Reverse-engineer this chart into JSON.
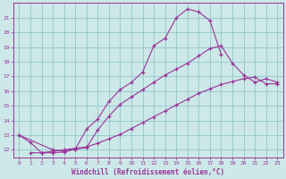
{
  "xlabel": "Windchill (Refroidissement éolien,°C)",
  "bg_color": "#cce8e8",
  "grid_color": "#99cccc",
  "line_color": "#993399",
  "spine_color": "#993399",
  "ylim": [
    11.5,
    22.0
  ],
  "xlim": [
    -0.5,
    23.5
  ],
  "yticks": [
    12,
    13,
    14,
    15,
    16,
    17,
    18,
    19,
    20,
    21
  ],
  "xticks": [
    0,
    1,
    2,
    3,
    4,
    5,
    6,
    7,
    8,
    9,
    10,
    11,
    12,
    13,
    14,
    15,
    16,
    17,
    18,
    19,
    20,
    21,
    22,
    23
  ],
  "tick_fontsize": 4.5,
  "xlabel_fontsize": 5.5,
  "line1_x": [
    0,
    1,
    2,
    3,
    4,
    5,
    6,
    7,
    8,
    9,
    10,
    11,
    12,
    13,
    14,
    15,
    16,
    17,
    18
  ],
  "line1_y": [
    13.0,
    12.5,
    11.8,
    11.8,
    11.85,
    12.05,
    13.4,
    14.1,
    15.3,
    16.1,
    16.6,
    17.3,
    19.1,
    19.6,
    21.0,
    21.6,
    21.4,
    20.8,
    18.5
  ],
  "line2_x": [
    0,
    3,
    4,
    5,
    6,
    7,
    8,
    9,
    10,
    11,
    12,
    13,
    14,
    15,
    16,
    17,
    18,
    19,
    20,
    21,
    22,
    23
  ],
  "line2_y": [
    13.0,
    12.0,
    11.9,
    12.05,
    12.15,
    13.35,
    14.3,
    15.1,
    15.6,
    16.1,
    16.6,
    17.1,
    17.5,
    17.9,
    18.4,
    18.9,
    19.1,
    17.9,
    17.1,
    16.6,
    16.85,
    16.6
  ],
  "line3_x": [
    1,
    2,
    3,
    4,
    5,
    6,
    7,
    8,
    9,
    10,
    11,
    12,
    13,
    14,
    15,
    16,
    17,
    18,
    19,
    20,
    21,
    22,
    23
  ],
  "line3_y": [
    11.8,
    11.8,
    11.9,
    12.0,
    12.1,
    12.2,
    12.45,
    12.75,
    13.05,
    13.45,
    13.85,
    14.25,
    14.65,
    15.05,
    15.45,
    15.85,
    16.15,
    16.45,
    16.65,
    16.85,
    16.95,
    16.5,
    16.5
  ]
}
